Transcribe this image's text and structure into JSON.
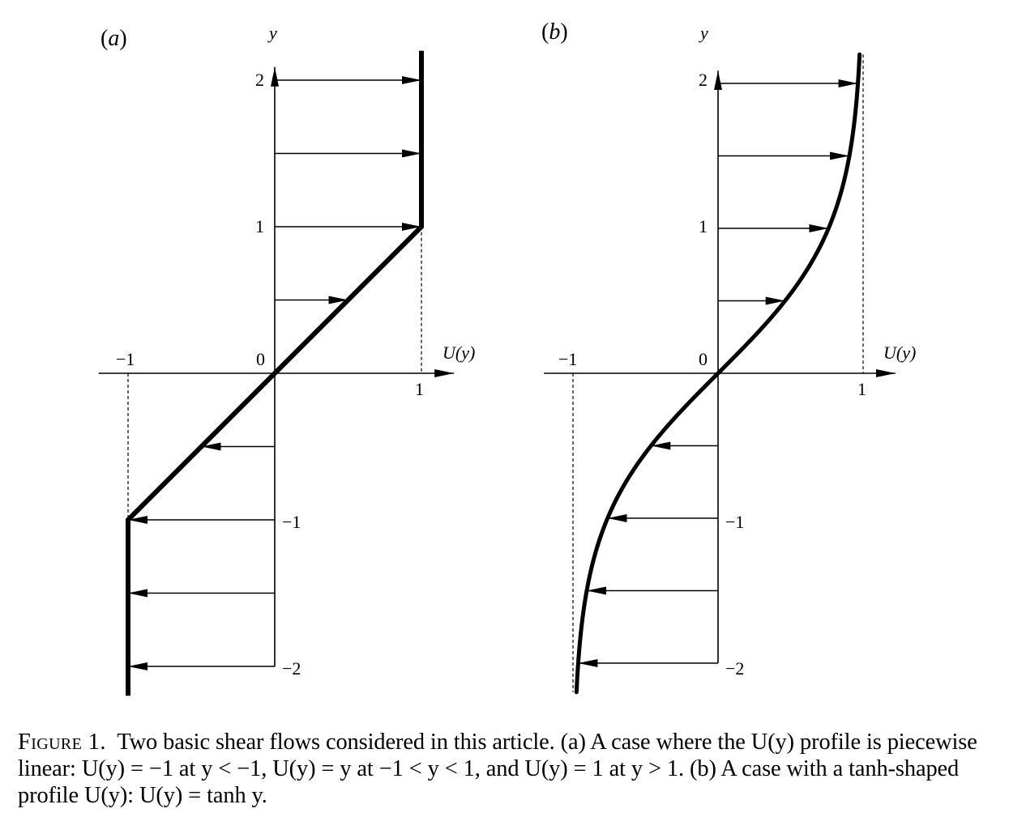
{
  "panels": [
    {
      "id": "a",
      "label": "a",
      "profile": "piecewise-linear",
      "y_axis_label": "y",
      "x_axis_label": "U(y)",
      "origin_label": "0",
      "x_tick_labels": {
        "minus_one": "−1",
        "one": "1"
      },
      "y_tick_labels": {
        "two": "2",
        "one": "1",
        "minus_one": "−1",
        "minus_two": "−2"
      }
    },
    {
      "id": "b",
      "label": "b",
      "profile": "tanh",
      "y_axis_label": "y",
      "x_axis_label": "U(y)",
      "origin_label": "0",
      "x_tick_labels": {
        "minus_one": "−1",
        "one": "1"
      },
      "y_tick_labels": {
        "two": "2",
        "one": "1",
        "minus_one": "−1",
        "minus_two": "−2"
      }
    }
  ],
  "chart_data": [
    {
      "type": "line",
      "panel": "a",
      "function": "U(y) = -1 for y < -1; U(y) = y for -1 < y < 1; U(y) = 1 for y > 1",
      "curve": {
        "y": [
          -2.2,
          -1,
          1,
          2.2
        ],
        "U": [
          -1,
          -1,
          1,
          1
        ]
      },
      "arrows": {
        "y": [
          2,
          1.5,
          1,
          0.5,
          -0.5,
          -1,
          -1.5,
          -2
        ],
        "U": [
          1,
          1,
          1,
          0.5,
          -0.5,
          -1,
          -1,
          -1
        ]
      },
      "asymptotes_U": [
        -1,
        1
      ],
      "xlim": [
        -1.2,
        1.2
      ],
      "ylim": [
        -2.2,
        2.2
      ]
    },
    {
      "type": "line",
      "panel": "b",
      "function": "U(y) = tanh y",
      "curve": {
        "y": [
          -2.2,
          -2,
          -1.5,
          -1,
          -0.5,
          0,
          0.5,
          1,
          1.5,
          2,
          2.2
        ],
        "U": [
          -0.976,
          -0.964,
          -0.905,
          -0.762,
          -0.462,
          0,
          0.462,
          0.762,
          0.905,
          0.964,
          0.976
        ]
      },
      "arrows": {
        "y": [
          2,
          1.5,
          1,
          0.5,
          -0.5,
          -1,
          -1.5,
          -2
        ],
        "U": [
          0.964,
          0.905,
          0.762,
          0.462,
          -0.462,
          -0.762,
          -0.905,
          -0.964
        ]
      },
      "asymptotes_U": [
        -1,
        1
      ],
      "xlim": [
        -1.2,
        1.2
      ],
      "ylim": [
        -2.2,
        2.2
      ]
    }
  ],
  "caption": {
    "figure_label": "Figure 1.",
    "text": "Two basic shear flows considered in this article. (a) A case where the U(y) profile is piecewise linear: U(y) = −1 at y < −1, U(y) = y at −1 < y < 1, and U(y) = 1 at y > 1. (b) A case with a tanh-shaped profile U(y): U(y) = tanh y."
  },
  "colors": {
    "ink": "#000000",
    "background": "#ffffff"
  }
}
